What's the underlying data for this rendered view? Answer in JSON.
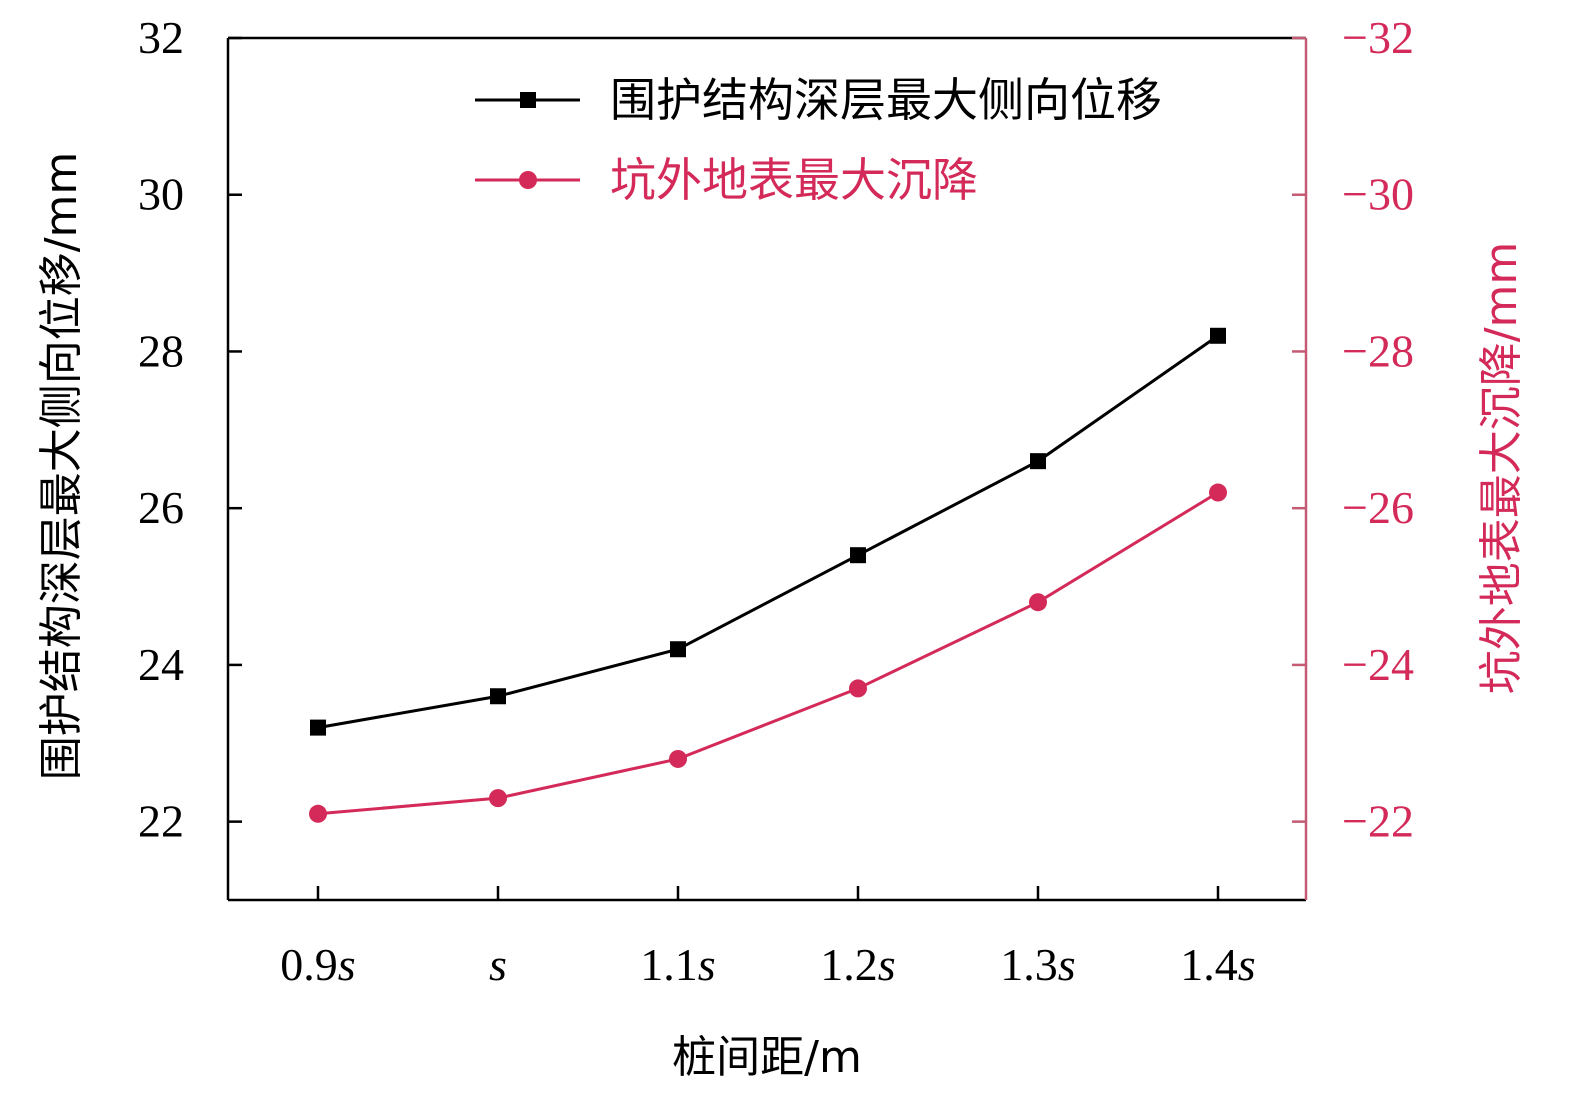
{
  "chart_data": {
    "type": "line",
    "categories": [
      "0.9s",
      "s",
      "1.1s",
      "1.2s",
      "1.3s",
      "1.4s"
    ],
    "xlabel": "桩间距/m",
    "ylabel_left": "围护结构深层最大侧向位移/mm",
    "ylabel_right": "坑外地表最大沉降/mm",
    "ylim_left": [
      21,
      32
    ],
    "ylim_right": [
      -21,
      -32
    ],
    "yticks_left": [
      "22",
      "24",
      "26",
      "28",
      "30",
      "32"
    ],
    "yticks_right": [
      "−22",
      "−24",
      "−26",
      "−28",
      "−30",
      "−32"
    ],
    "grid": false,
    "legend_position": "top-right",
    "series": [
      {
        "name": "围护结构深层最大侧向位移",
        "axis": "left",
        "marker": "square",
        "color": "#000000",
        "values": [
          23.2,
          23.6,
          24.2,
          25.4,
          26.6,
          28.2
        ]
      },
      {
        "name": "坑外地表最大沉降",
        "axis": "right",
        "marker": "circle",
        "color": "#d42a59",
        "values": [
          -22.1,
          -22.3,
          -22.8,
          -23.7,
          -24.8,
          -26.2
        ]
      }
    ]
  }
}
